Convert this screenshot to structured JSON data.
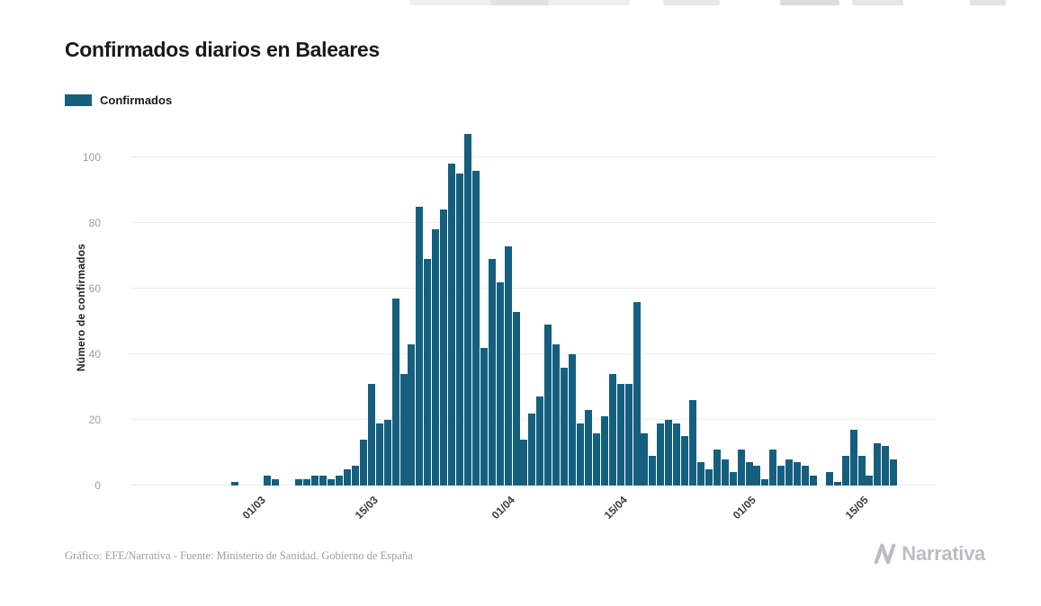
{
  "page": {
    "title": "Confirmados diarios en Baleares",
    "legend": {
      "label": "Confirmados",
      "color": "#155f7e"
    },
    "footer": {
      "credit": "Gráfico: EFE/Narrativa - Fuente: Ministerio de Sanidad. Gobierno de España"
    },
    "brand": {
      "name": "Narrativa"
    }
  },
  "chart_data": {
    "type": "bar",
    "title": "Confirmados diarios en Baleares",
    "xlabel": "",
    "ylabel": "Número de confirmados",
    "ylim": [
      0,
      110
    ],
    "yticks": [
      0,
      20,
      40,
      60,
      80,
      100
    ],
    "grid": true,
    "legend": [
      "Confirmados"
    ],
    "legend_position": "top-left",
    "bar_color": "#155f7e",
    "x": [
      "27/02",
      "28/02",
      "29/02",
      "01/03",
      "02/03",
      "03/03",
      "04/03",
      "05/03",
      "06/03",
      "07/03",
      "08/03",
      "09/03",
      "10/03",
      "11/03",
      "12/03",
      "13/03",
      "14/03",
      "15/03",
      "16/03",
      "17/03",
      "18/03",
      "19/03",
      "20/03",
      "21/03",
      "22/03",
      "23/03",
      "24/03",
      "25/03",
      "26/03",
      "27/03",
      "28/03",
      "29/03",
      "30/03",
      "31/03",
      "01/04",
      "02/04",
      "03/04",
      "04/04",
      "05/04",
      "06/04",
      "07/04",
      "08/04",
      "09/04",
      "10/04",
      "11/04",
      "12/04",
      "13/04",
      "14/04",
      "15/04",
      "16/04",
      "17/04",
      "18/04",
      "19/04",
      "20/04",
      "21/04",
      "22/04",
      "23/04",
      "24/04",
      "25/04",
      "26/04",
      "27/04",
      "28/04",
      "29/04",
      "30/04",
      "01/05",
      "02/05",
      "03/05",
      "04/05",
      "05/05",
      "06/05",
      "07/05",
      "08/05",
      "09/05",
      "10/05",
      "11/05",
      "12/05",
      "13/05",
      "14/05",
      "15/05",
      "16/05",
      "17/05",
      "18/05",
      "19/05"
    ],
    "values": [
      1,
      0,
      0,
      0,
      3,
      2,
      0,
      0,
      2,
      2,
      3,
      3,
      2,
      3,
      5,
      6,
      14,
      31,
      19,
      20,
      57,
      34,
      43,
      85,
      69,
      78,
      84,
      98,
      95,
      107,
      96,
      42,
      69,
      62,
      73,
      53,
      14,
      22,
      27,
      49,
      43,
      36,
      40,
      19,
      23,
      16,
      21,
      34,
      31,
      31,
      56,
      16,
      9,
      19,
      20,
      19,
      15,
      26,
      7,
      5,
      11,
      8,
      4,
      11,
      7,
      6,
      2,
      11,
      6,
      8,
      7,
      6,
      3,
      0,
      4,
      1,
      9,
      17,
      9,
      3,
      13,
      12,
      8
    ],
    "xtick_labels": [
      "01/03",
      "15/03",
      "01/04",
      "15/04",
      "01/05",
      "15/05"
    ],
    "xtick_indices": [
      3,
      17,
      34,
      48,
      64,
      78
    ]
  }
}
